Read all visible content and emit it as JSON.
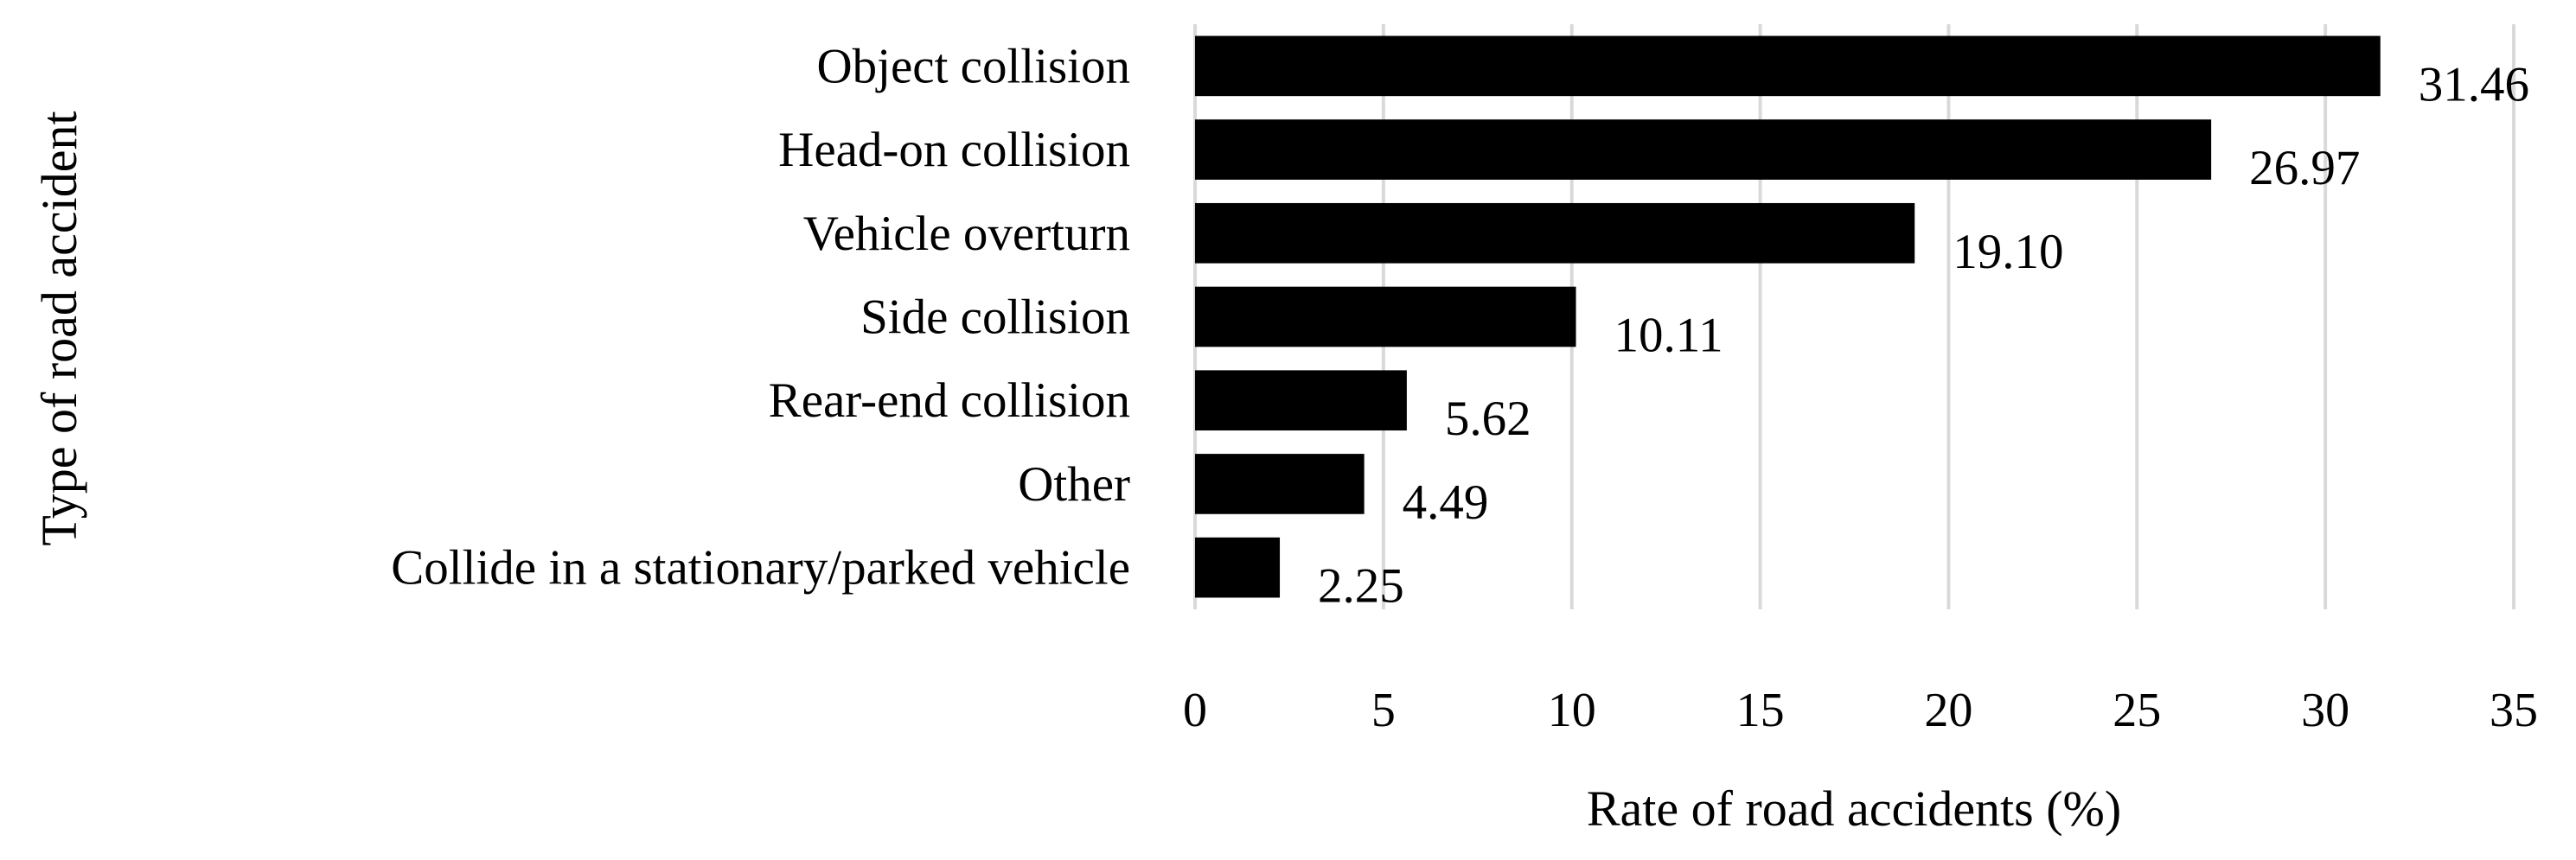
{
  "chart_data": {
    "type": "bar",
    "orientation": "horizontal",
    "categories": [
      "Object collision",
      "Head-on collision",
      "Vehicle overturn",
      "Side collision",
      "Rear-end collision",
      "Other",
      "Collide in a stationary/parked vehicle"
    ],
    "values": [
      31.46,
      26.97,
      19.1,
      10.11,
      5.62,
      4.49,
      2.25
    ],
    "value_labels": [
      "31.46",
      "26.97",
      "19.10",
      "10.11",
      "5.62",
      "4.49",
      "2.25"
    ],
    "xlabel": "Rate of road accidents (%)",
    "ylabel": "Type of road accident",
    "xlim": [
      0,
      35
    ],
    "xticks": [
      "0",
      "5",
      "10",
      "15",
      "20",
      "25",
      "30",
      "35"
    ],
    "grid": "vertical",
    "bar_color": "#000000",
    "grid_color": "#d9d9d9"
  }
}
